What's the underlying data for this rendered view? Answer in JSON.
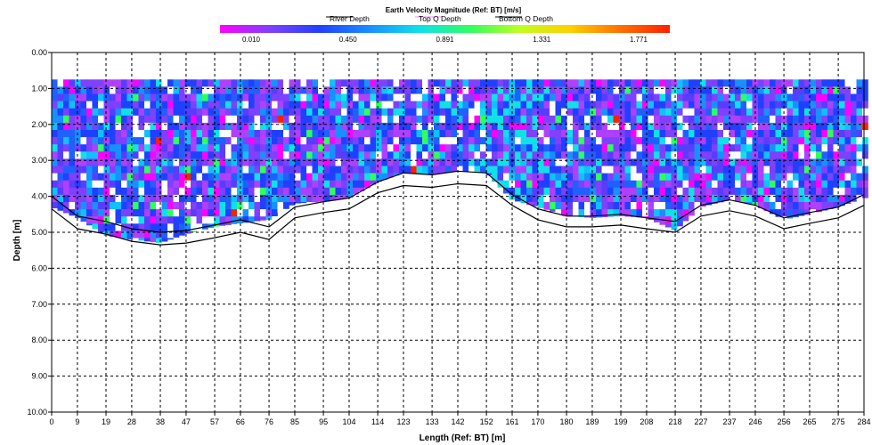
{
  "chart_data": {
    "type": "heatmap",
    "title": "Earth Velocity Magnitude (Ref: BT) [m/s]",
    "xlabel": "Length (Ref: BT) [m]",
    "ylabel": "Depth [m]",
    "x_ticks": [
      "0",
      "9",
      "19",
      "28",
      "38",
      "47",
      "57",
      "66",
      "76",
      "85",
      "95",
      "104",
      "114",
      "123",
      "133",
      "142",
      "152",
      "161",
      "170",
      "180",
      "189",
      "199",
      "208",
      "218",
      "227",
      "237",
      "246",
      "256",
      "265",
      "275",
      "284"
    ],
    "y_ticks": [
      "0.00",
      "1.00",
      "2.00",
      "3.00",
      "4.00",
      "5.00",
      "6.00",
      "7.00",
      "8.00",
      "9.00",
      "10.00"
    ],
    "xlim": [
      0,
      284
    ],
    "ylim": [
      10,
      0
    ],
    "grid": true,
    "legend": {
      "placement": "top",
      "entries": [
        "River Depth",
        "Top Q Depth",
        "Bottom Q Depth"
      ],
      "colors": [
        "#000000",
        "#ff88ff",
        "#000000"
      ]
    },
    "colorbar": {
      "placement": "top",
      "tick_labels": [
        "0.010",
        "0.450",
        "0.891",
        "1.331",
        "1.771"
      ],
      "min": 0.01,
      "max": 1.771,
      "colors": [
        "#ff00ff",
        "#7f40ff",
        "#2040ff",
        "#1890ff",
        "#10e0e8",
        "#30ff60",
        "#c0ff20",
        "#ffd000",
        "#ff7000",
        "#ff2000"
      ]
    },
    "top_q_depth_m": 0.75,
    "river_depth_profile": {
      "x": [
        0,
        9,
        19,
        28,
        38,
        47,
        57,
        66,
        76,
        85,
        95,
        104,
        114,
        123,
        133,
        142,
        152,
        161,
        170,
        180,
        189,
        199,
        208,
        218,
        227,
        237,
        246,
        256,
        265,
        275,
        284
      ],
      "y": [
        4.35,
        4.9,
        5.05,
        5.25,
        5.35,
        5.3,
        5.15,
        5.0,
        5.2,
        4.6,
        4.45,
        4.35,
        3.9,
        3.7,
        3.75,
        3.65,
        3.7,
        4.25,
        4.65,
        4.85,
        4.85,
        4.8,
        4.9,
        5.0,
        4.55,
        4.4,
        4.55,
        4.9,
        4.75,
        4.6,
        4.25
      ]
    },
    "bottom_q_depth_profile": {
      "x": [
        0,
        9,
        19,
        28,
        38,
        47,
        57,
        66,
        76,
        85,
        95,
        104,
        114,
        123,
        133,
        142,
        152,
        161,
        170,
        180,
        189,
        199,
        208,
        218,
        227,
        237,
        246,
        256,
        265,
        275,
        284
      ],
      "y": [
        4.0,
        4.55,
        4.7,
        4.9,
        5.0,
        4.95,
        4.8,
        4.65,
        4.85,
        4.3,
        4.15,
        4.05,
        3.6,
        3.35,
        3.4,
        3.3,
        3.35,
        3.95,
        4.35,
        4.55,
        4.55,
        4.5,
        4.6,
        4.7,
        4.25,
        4.1,
        4.25,
        4.6,
        4.45,
        4.3,
        3.95
      ]
    },
    "data_bottom_profile": {
      "x": [
        0,
        9,
        19,
        28,
        38,
        47,
        57,
        66,
        76,
        85,
        95,
        104,
        114,
        123,
        133,
        142,
        152,
        161,
        170,
        180,
        189,
        199,
        208,
        218,
        227,
        237,
        246,
        256,
        265,
        275,
        284
      ],
      "y": [
        4.3,
        4.6,
        5.1,
        5.2,
        5.3,
        5.05,
        4.85,
        4.75,
        4.65,
        4.2,
        4.15,
        4.05,
        3.6,
        3.35,
        3.4,
        3.3,
        3.35,
        4.1,
        4.3,
        4.55,
        4.6,
        4.55,
        4.6,
        4.95,
        4.3,
        4.1,
        4.25,
        4.65,
        4.5,
        4.3,
        4.05
      ]
    }
  }
}
